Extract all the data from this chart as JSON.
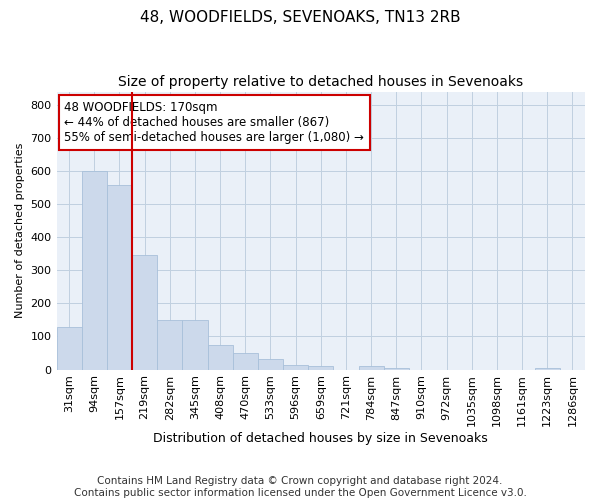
{
  "title1": "48, WOODFIELDS, SEVENOAKS, TN13 2RB",
  "title2": "Size of property relative to detached houses in Sevenoaks",
  "xlabel": "Distribution of detached houses by size in Sevenoaks",
  "ylabel": "Number of detached properties",
  "bin_labels": [
    "31sqm",
    "94sqm",
    "157sqm",
    "219sqm",
    "282sqm",
    "345sqm",
    "408sqm",
    "470sqm",
    "533sqm",
    "596sqm",
    "659sqm",
    "721sqm",
    "784sqm",
    "847sqm",
    "910sqm",
    "972sqm",
    "1035sqm",
    "1098sqm",
    "1161sqm",
    "1223sqm",
    "1286sqm"
  ],
  "bar_values": [
    128,
    600,
    558,
    347,
    150,
    150,
    75,
    50,
    33,
    14,
    10,
    0,
    10,
    5,
    0,
    0,
    0,
    0,
    0,
    5,
    0
  ],
  "bar_color": "#ccd9eb",
  "bar_edge_color": "#a8c0da",
  "property_line_color": "#cc0000",
  "property_line_x": 2.5,
  "annotation_line1": "48 WOODFIELDS: 170sqm",
  "annotation_line2": "← 44% of detached houses are smaller (867)",
  "annotation_line3": "55% of semi-detached houses are larger (1,080) →",
  "annotation_box_color": "#ffffff",
  "annotation_box_edge": "#cc0000",
  "ylim": [
    0,
    840
  ],
  "yticks": [
    0,
    100,
    200,
    300,
    400,
    500,
    600,
    700,
    800
  ],
  "grid_color": "#c0d0e0",
  "bg_color": "#eaf0f8",
  "footer": "Contains HM Land Registry data © Crown copyright and database right 2024.\nContains public sector information licensed under the Open Government Licence v3.0.",
  "title1_fontsize": 11,
  "title2_fontsize": 10,
  "xlabel_fontsize": 9,
  "ylabel_fontsize": 8,
  "tick_fontsize": 8,
  "footer_fontsize": 7.5,
  "ann_fontsize": 8.5
}
